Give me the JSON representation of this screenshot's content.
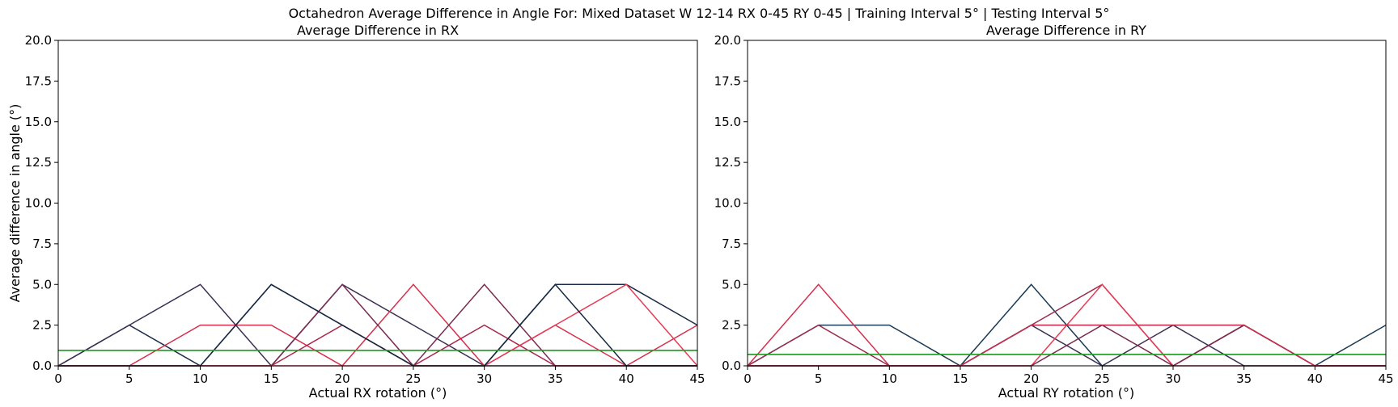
{
  "figure": {
    "suptitle": "Octahedron Average Difference in Angle For: Mixed Dataset W 12-14 RX 0-45 RY 0-45 | Training Interval 5° | Testing Interval 5°"
  },
  "chart_data": [
    {
      "type": "line",
      "title": "Average Difference in RX",
      "xlabel": "Actual RX rotation (°)",
      "ylabel": "Average difference in angle (°)",
      "xlim": [
        0,
        45
      ],
      "ylim": [
        0,
        20
      ],
      "xticks": [
        "0",
        "5",
        "10",
        "15",
        "20",
        "25",
        "30",
        "35",
        "40",
        "45"
      ],
      "yticks": [
        "0.0",
        "2.5",
        "5.0",
        "7.5",
        "10.0",
        "12.5",
        "15.0",
        "17.5",
        "20.0"
      ],
      "grid": false,
      "mean_line": {
        "y": 0.95,
        "color": "#2ca02c"
      },
      "series": [
        {
          "color": "#1b2a4a",
          "x": [
            0,
            5,
            10,
            15,
            20,
            25,
            30,
            35,
            40,
            45
          ],
          "y": [
            0,
            2.5,
            0,
            5,
            2.5,
            0,
            0,
            5,
            5,
            2.5
          ]
        },
        {
          "color": "#3b2f55",
          "x": [
            0,
            5,
            10,
            15,
            20,
            25,
            30,
            35,
            40,
            45
          ],
          "y": [
            0,
            2.5,
            5,
            0,
            5,
            2.5,
            0,
            0,
            0,
            0
          ]
        },
        {
          "color": "#d62f4b",
          "x": [
            0,
            5,
            10,
            15,
            20,
            25,
            30,
            35,
            40,
            45
          ],
          "y": [
            0,
            0,
            2.5,
            2.5,
            0,
            5,
            0,
            2.5,
            0,
            2.5
          ]
        },
        {
          "color": "#7a2a4f",
          "x": [
            0,
            5,
            10,
            15,
            20,
            25,
            30,
            35,
            40,
            45
          ],
          "y": [
            0,
            0,
            0,
            0,
            5,
            0,
            5,
            0,
            0,
            0
          ]
        },
        {
          "color": "#a8284a",
          "x": [
            0,
            5,
            10,
            15,
            20,
            25,
            30,
            35,
            40,
            45
          ],
          "y": [
            0,
            0,
            0,
            0,
            2.5,
            0,
            2.5,
            0,
            0,
            0
          ]
        },
        {
          "color": "#e83a55",
          "x": [
            0,
            5,
            10,
            15,
            20,
            25,
            30,
            35,
            40,
            45
          ],
          "y": [
            0,
            0,
            0,
            0,
            0,
            0,
            0,
            2.5,
            5,
            0
          ]
        },
        {
          "color": "#152842",
          "x": [
            0,
            5,
            10,
            15,
            20,
            25,
            30,
            35,
            40,
            45
          ],
          "y": [
            0,
            0,
            0,
            5,
            2.5,
            0,
            0,
            5,
            0,
            0
          ]
        }
      ]
    },
    {
      "type": "line",
      "title": "Average Difference in RY",
      "xlabel": "Actual RY rotation (°)",
      "ylabel": "",
      "xlim": [
        0,
        45
      ],
      "ylim": [
        0,
        20
      ],
      "xticks": [
        "0",
        "5",
        "10",
        "15",
        "20",
        "25",
        "30",
        "35",
        "40",
        "45"
      ],
      "yticks": [
        "0.0",
        "2.5",
        "5.0",
        "7.5",
        "10.0",
        "12.5",
        "15.0",
        "17.5",
        "20.0"
      ],
      "grid": false,
      "mean_line": {
        "y": 0.7,
        "color": "#2ca02c"
      },
      "series": [
        {
          "color": "#1b3a55",
          "x": [
            0,
            5,
            10,
            15,
            20,
            25,
            30,
            35,
            40,
            45
          ],
          "y": [
            0,
            2.5,
            2.5,
            0,
            5,
            0,
            0,
            2.5,
            0,
            2.5
          ]
        },
        {
          "color": "#d62f4b",
          "x": [
            0,
            5,
            10,
            15,
            20,
            25,
            30,
            35,
            40,
            45
          ],
          "y": [
            0,
            5,
            0,
            0,
            2.5,
            2.5,
            2.5,
            2.5,
            0,
            0
          ]
        },
        {
          "color": "#9b2c4e",
          "x": [
            0,
            5,
            10,
            15,
            20,
            25,
            30,
            35,
            40,
            45
          ],
          "y": [
            0,
            2.5,
            0,
            0,
            2.5,
            5,
            0,
            0,
            0,
            0
          ]
        },
        {
          "color": "#3b2f55",
          "x": [
            0,
            5,
            10,
            15,
            20,
            25,
            30,
            35,
            40,
            45
          ],
          "y": [
            0,
            0,
            0,
            0,
            2.5,
            0,
            2.5,
            0,
            0,
            0
          ]
        },
        {
          "color": "#e83a55",
          "x": [
            0,
            5,
            10,
            15,
            20,
            25,
            30,
            35,
            40,
            45
          ],
          "y": [
            0,
            0,
            0,
            0,
            0,
            5,
            0,
            2.5,
            0,
            0
          ]
        },
        {
          "color": "#7a2a4f",
          "x": [
            0,
            5,
            10,
            15,
            20,
            25,
            30,
            35,
            40,
            45
          ],
          "y": [
            0,
            0,
            0,
            0,
            0,
            2.5,
            0,
            2.5,
            0,
            0
          ]
        },
        {
          "color": "#c43150",
          "x": [
            0,
            5,
            10,
            15,
            20,
            25,
            30,
            35,
            40,
            45
          ],
          "y": [
            0,
            0,
            0,
            0,
            2.5,
            2.5,
            2.5,
            2.5,
            0,
            0
          ]
        }
      ]
    }
  ]
}
